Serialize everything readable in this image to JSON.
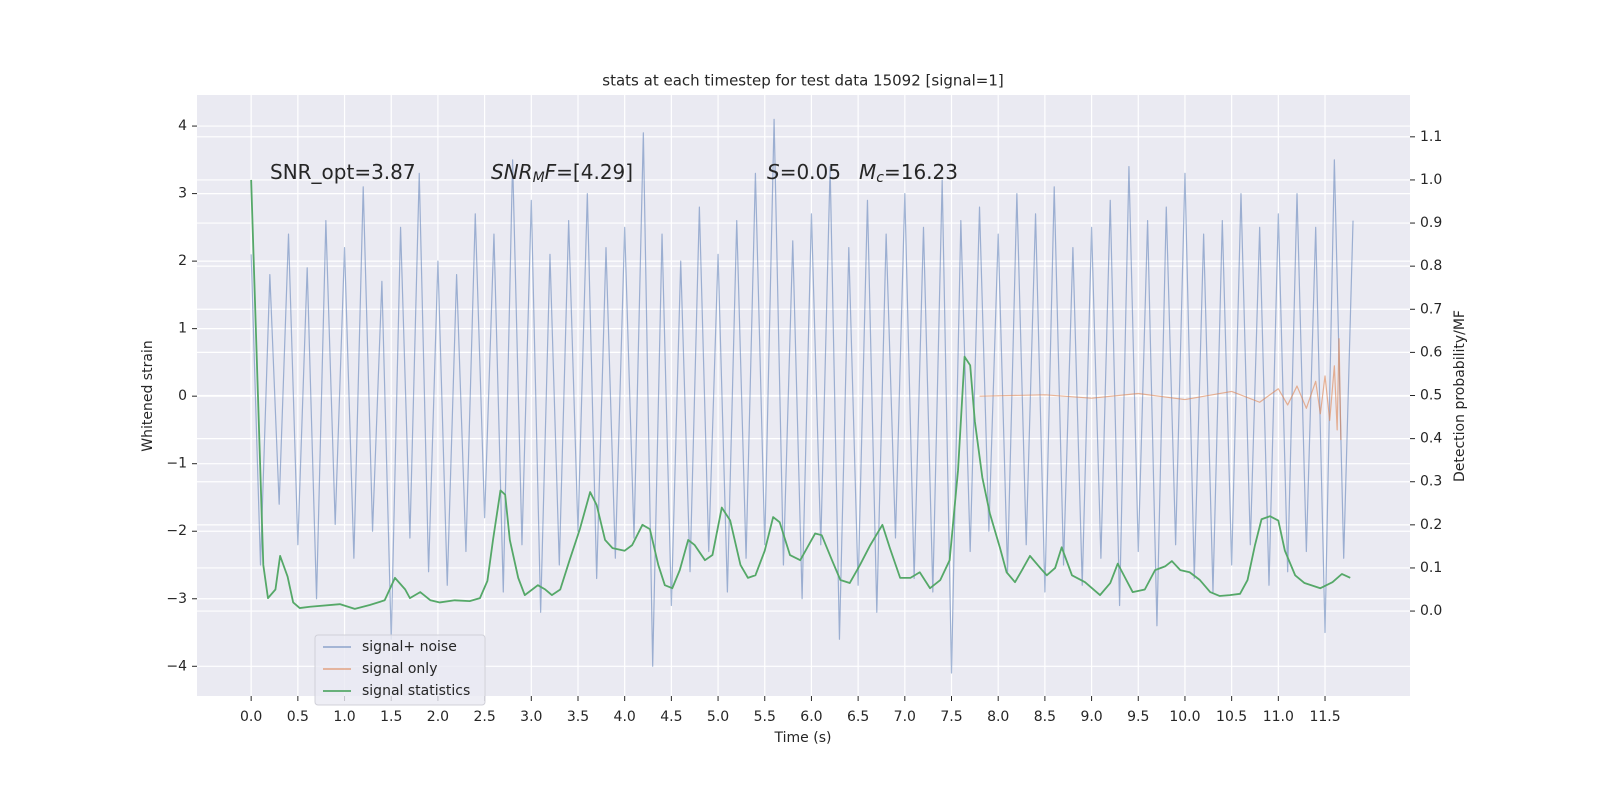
{
  "chart_data": {
    "type": "line",
    "title": "stats at each timestep for test data 15092 [signal=1]",
    "xlabel": "Time (s)",
    "ylabel": "Whitened strain",
    "y2label": "Detection probability/MF",
    "xlim": [
      -0.58,
      12.41
    ],
    "ylim": [
      -4.44,
      4.46
    ],
    "y2lim": [
      -0.197,
      1.197
    ],
    "xticks": [
      {
        "value": 0,
        "label": "0.0"
      },
      0.5,
      {
        "value": 1,
        "label": "1.0"
      },
      1.5,
      {
        "value": 2,
        "label": "2.0"
      },
      2.5,
      {
        "value": 3,
        "label": "3.0"
      },
      3.5,
      {
        "value": 4,
        "label": "4.0"
      },
      4.5,
      {
        "value": 5,
        "label": "5.0"
      },
      5.5,
      {
        "value": 6,
        "label": "6.0"
      },
      6.5,
      {
        "value": 7,
        "label": "7.0"
      },
      7.5,
      {
        "value": 8,
        "label": "8.0"
      },
      8.5,
      {
        "value": 9,
        "label": "9.0"
      },
      9.5,
      {
        "value": 10,
        "label": "10.0"
      },
      10.5,
      {
        "value": 11,
        "label": "11.0"
      },
      11.5
    ],
    "yticks": [
      {
        "value": -4,
        "label": "−4"
      },
      {
        "value": -3,
        "label": "−3"
      },
      {
        "value": -2,
        "label": "−2"
      },
      {
        "value": -1,
        "label": "−1"
      },
      0,
      1,
      2,
      3,
      4
    ],
    "y2ticks": [
      {
        "value": 0,
        "label": "0.0"
      },
      0.1,
      0.2,
      0.3,
      0.4,
      0.5,
      0.6,
      0.7,
      0.8,
      0.9,
      {
        "value": 1,
        "label": "1.0"
      },
      1.1
    ],
    "grid": true,
    "legend": "lower left",
    "annotations": [
      {
        "parts": [
          "SNR_opt=3.87"
        ]
      },
      {
        "parts": [
          "SNR",
          "M",
          "F",
          "=[4.29]"
        ]
      },
      {
        "parts": [
          "S",
          "=0.05"
        ]
      },
      {
        "parts": [
          "M",
          "c",
          "=16.23"
        ]
      }
    ],
    "series": [
      {
        "name": "signal+ noise",
        "color": "#4c72b0",
        "x": [
          0.0,
          0.1,
          0.2,
          0.3,
          0.4,
          0.5,
          0.6,
          0.7,
          0.8,
          0.9,
          1.0,
          1.1,
          1.2,
          1.3,
          1.4,
          1.5,
          1.6,
          1.7,
          1.8,
          1.9,
          2.0,
          2.1,
          2.2,
          2.3,
          2.4,
          2.5,
          2.6,
          2.7,
          2.8,
          2.9,
          3.0,
          3.1,
          3.2,
          3.3,
          3.4,
          3.5,
          3.6,
          3.7,
          3.8,
          3.9,
          4.0,
          4.1,
          4.2,
          4.3,
          4.4,
          4.5,
          4.6,
          4.7,
          4.8,
          4.9,
          5.0,
          5.1,
          5.2,
          5.3,
          5.4,
          5.5,
          5.6,
          5.7,
          5.8,
          5.9,
          6.0,
          6.1,
          6.2,
          6.3,
          6.4,
          6.5,
          6.6,
          6.7,
          6.8,
          6.9,
          7.0,
          7.1,
          7.2,
          7.3,
          7.4,
          7.5,
          7.6,
          7.7,
          7.8,
          7.9,
          8.0,
          8.1,
          8.2,
          8.3,
          8.4,
          8.5,
          8.6,
          8.7,
          8.8,
          8.9,
          9.0,
          9.1,
          9.2,
          9.3,
          9.4,
          9.5,
          9.6,
          9.7,
          9.8,
          9.9,
          10.0,
          10.1,
          10.2,
          10.3,
          10.4,
          10.5,
          10.6,
          10.7,
          10.8,
          10.9,
          11.0,
          11.1,
          11.2,
          11.3,
          11.4,
          11.5,
          11.6,
          11.7,
          11.8
        ],
        "values": [
          2.1,
          -2.5,
          1.8,
          -1.6,
          2.4,
          -2.2,
          1.9,
          -3.0,
          2.6,
          -1.9,
          2.2,
          -2.4,
          3.1,
          -2.0,
          1.7,
          -3.6,
          2.5,
          -2.1,
          3.3,
          -2.6,
          2.0,
          -2.8,
          1.8,
          -2.3,
          2.7,
          -1.8,
          2.4,
          -2.9,
          3.5,
          -2.2,
          2.9,
          -3.2,
          2.1,
          -2.5,
          2.6,
          -2.0,
          3.0,
          -2.7,
          2.2,
          -2.4,
          2.5,
          -2.1,
          3.9,
          -4.0,
          2.4,
          -3.1,
          2.0,
          -2.6,
          2.8,
          -2.3,
          2.1,
          -2.9,
          2.6,
          -2.4,
          3.3,
          -2.2,
          4.1,
          -2.5,
          2.3,
          -3.0,
          2.7,
          -2.2,
          3.4,
          -3.6,
          2.2,
          -2.8,
          2.9,
          -3.2,
          2.4,
          -2.1,
          3.0,
          -2.7,
          2.5,
          -2.9,
          3.2,
          -4.1,
          2.6,
          -2.3,
          2.8,
          -2.0,
          2.4,
          -2.6,
          3.0,
          -2.2,
          2.7,
          -2.9,
          3.1,
          -2.5,
          2.2,
          -2.8,
          2.5,
          -2.4,
          2.9,
          -3.1,
          3.4,
          -2.3,
          2.6,
          -3.4,
          2.8,
          -2.2,
          3.3,
          -2.7,
          2.4,
          -2.9,
          2.6,
          -2.5,
          3.0,
          -2.2,
          2.5,
          -2.8,
          2.7,
          -2.6,
          3.0,
          -2.3,
          2.5,
          -3.5,
          3.5,
          -2.4,
          2.6
        ]
      },
      {
        "name": "signal only",
        "color": "#dd8452",
        "x": [
          7.8,
          8.5,
          9.0,
          9.5,
          10.0,
          10.5,
          10.8,
          11.0,
          11.1,
          11.2,
          11.3,
          11.4,
          11.45,
          11.5,
          11.55,
          11.6,
          11.63,
          11.65,
          11.67
        ],
        "values": [
          0.0,
          0.02,
          -0.03,
          0.04,
          -0.05,
          0.07,
          -0.09,
          0.11,
          -0.13,
          0.15,
          -0.18,
          0.22,
          -0.26,
          0.3,
          -0.36,
          0.45,
          -0.5,
          0.85,
          -0.65
        ]
      },
      {
        "name": "signal statistics",
        "color": "#55a868",
        "axis": "y2",
        "x": [
          0.0,
          0.13,
          0.18,
          0.26,
          0.31,
          0.39,
          0.45,
          0.52,
          0.63,
          0.95,
          1.11,
          1.27,
          1.43,
          1.54,
          1.65,
          1.7,
          1.81,
          1.92,
          2.02,
          2.18,
          2.34,
          2.45,
          2.53,
          2.59,
          2.67,
          2.72,
          2.77,
          2.86,
          2.93,
          3.01,
          3.07,
          3.15,
          3.22,
          3.31,
          3.41,
          3.52,
          3.63,
          3.7,
          3.79,
          3.87,
          4.0,
          4.08,
          4.19,
          4.27,
          4.36,
          4.43,
          4.51,
          4.59,
          4.68,
          4.75,
          4.86,
          4.94,
          5.04,
          5.13,
          5.24,
          5.32,
          5.4,
          5.5,
          5.59,
          5.66,
          5.77,
          5.88,
          6.04,
          6.11,
          6.22,
          6.31,
          6.41,
          6.52,
          6.63,
          6.76,
          6.84,
          6.95,
          7.06,
          7.16,
          7.27,
          7.38,
          7.48,
          7.57,
          7.64,
          7.7,
          7.75,
          7.83,
          7.91,
          8.02,
          8.09,
          8.18,
          8.25,
          8.34,
          8.45,
          8.52,
          8.61,
          8.68,
          8.79,
          8.93,
          9.09,
          9.2,
          9.28,
          9.36,
          9.44,
          9.57,
          9.68,
          9.79,
          9.86,
          9.95,
          10.05,
          10.16,
          10.27,
          10.37,
          10.48,
          10.59,
          10.67,
          10.75,
          10.82,
          10.91,
          11.0,
          11.07,
          11.18,
          11.28,
          11.45,
          11.58,
          11.68,
          11.77
        ],
        "values": [
          1.0,
          0.107,
          0.03,
          0.05,
          0.128,
          0.08,
          0.02,
          0.007,
          0.01,
          0.016,
          0.005,
          0.014,
          0.025,
          0.077,
          0.05,
          0.03,
          0.044,
          0.025,
          0.02,
          0.025,
          0.023,
          0.03,
          0.07,
          0.165,
          0.28,
          0.27,
          0.165,
          0.077,
          0.037,
          0.05,
          0.06,
          0.05,
          0.037,
          0.05,
          0.118,
          0.19,
          0.276,
          0.246,
          0.165,
          0.146,
          0.14,
          0.153,
          0.2,
          0.19,
          0.107,
          0.06,
          0.053,
          0.095,
          0.165,
          0.153,
          0.118,
          0.13,
          0.24,
          0.21,
          0.107,
          0.077,
          0.083,
          0.14,
          0.218,
          0.206,
          0.13,
          0.118,
          0.18,
          0.176,
          0.118,
          0.072,
          0.065,
          0.107,
          0.153,
          0.2,
          0.146,
          0.077,
          0.077,
          0.09,
          0.053,
          0.072,
          0.118,
          0.327,
          0.59,
          0.57,
          0.44,
          0.31,
          0.227,
          0.146,
          0.09,
          0.067,
          0.093,
          0.128,
          0.1,
          0.083,
          0.1,
          0.148,
          0.083,
          0.067,
          0.037,
          0.065,
          0.11,
          0.077,
          0.044,
          0.05,
          0.095,
          0.104,
          0.116,
          0.095,
          0.09,
          0.072,
          0.044,
          0.035,
          0.037,
          0.04,
          0.072,
          0.153,
          0.213,
          0.22,
          0.21,
          0.14,
          0.083,
          0.065,
          0.053,
          0.067,
          0.086,
          0.077
        ]
      }
    ]
  }
}
